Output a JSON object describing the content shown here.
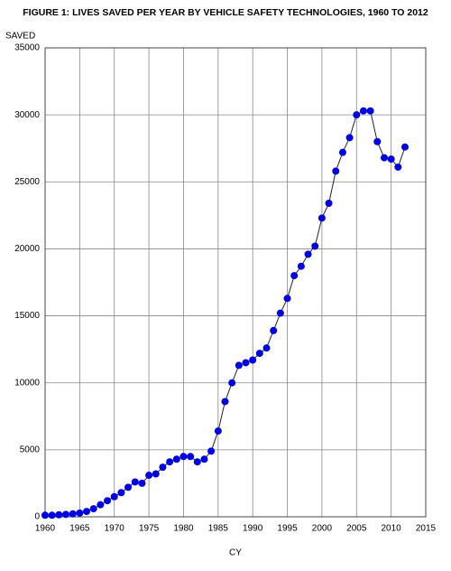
{
  "chart_data": {
    "type": "line",
    "title": "FIGURE 1: LIVES SAVED PER YEAR BY VEHICLE SAFETY TECHNOLOGIES, 1960 TO 2012",
    "y_label": "SAVED",
    "x_label": "CY",
    "x": [
      1960,
      1961,
      1962,
      1963,
      1964,
      1965,
      1966,
      1967,
      1968,
      1969,
      1970,
      1971,
      1972,
      1973,
      1974,
      1975,
      1976,
      1977,
      1978,
      1979,
      1980,
      1981,
      1982,
      1983,
      1984,
      1985,
      1986,
      1987,
      1988,
      1989,
      1990,
      1991,
      1992,
      1993,
      1994,
      1995,
      1996,
      1997,
      1998,
      1999,
      2000,
      2001,
      2002,
      2003,
      2004,
      2005,
      2006,
      2007,
      2008,
      2009,
      2010,
      2011,
      2012
    ],
    "values": [
      115,
      115,
      150,
      180,
      220,
      280,
      400,
      600,
      900,
      1200,
      1500,
      1800,
      2200,
      2600,
      2500,
      3100,
      3200,
      3700,
      4100,
      4300,
      4500,
      4500,
      4100,
      4300,
      4900,
      6400,
      8600,
      10000,
      11300,
      11500,
      11700,
      12200,
      12600,
      13900,
      15200,
      16300,
      18000,
      18700,
      19600,
      20200,
      22300,
      23400,
      25800,
      27200,
      28300,
      30000,
      30300,
      30300,
      28000,
      26800,
      26700,
      26100,
      27600
    ],
    "marker_color": "#0000e0",
    "line_color": "#222222",
    "xlim": [
      1960,
      2015
    ],
    "xticks": [
      1960,
      1965,
      1970,
      1975,
      1980,
      1985,
      1990,
      1995,
      2000,
      2005,
      2010,
      2015
    ],
    "ylim": [
      0,
      35000
    ],
    "yticks": [
      0,
      5000,
      10000,
      15000,
      20000,
      25000,
      30000,
      35000
    ],
    "grid": true
  }
}
